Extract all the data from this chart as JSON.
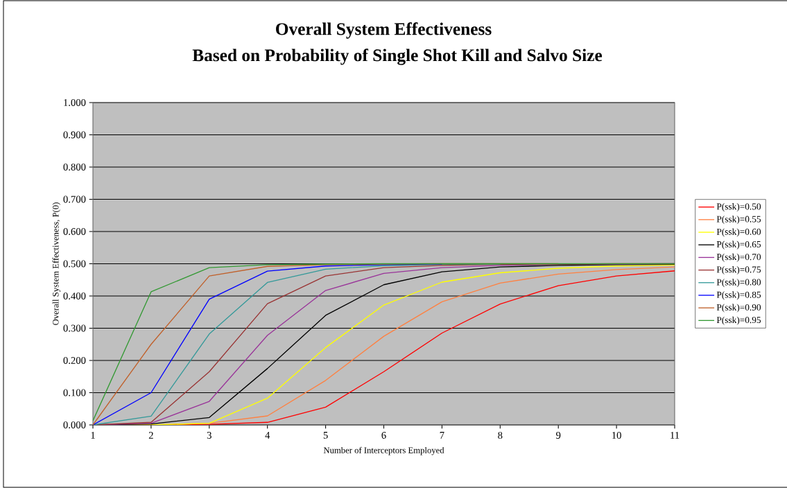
{
  "chart_data": {
    "type": "line",
    "title": "Overall System Effectiveness",
    "subtitle": "Based on Probability of Single Shot Kill and Salvo Size",
    "xlabel": "Number of Interceptors Employed",
    "ylabel": "Overall System Effectiveness, P(0)",
    "x": [
      1,
      2,
      3,
      4,
      5,
      6,
      7,
      8,
      9,
      10,
      11
    ],
    "xlim": [
      1,
      11
    ],
    "xticks": [
      1,
      2,
      3,
      4,
      5,
      6,
      7,
      8,
      9,
      10,
      11
    ],
    "ylim": [
      0,
      1
    ],
    "yticks": [
      {
        "value": 0,
        "label": "0.000"
      },
      {
        "value": 0.1,
        "label": "0.100"
      },
      {
        "value": 0.2,
        "label": "0.200"
      },
      {
        "value": 0.3,
        "label": "0.300"
      },
      {
        "value": 0.4,
        "label": "0.400"
      },
      {
        "value": 0.5,
        "label": "0.500"
      },
      {
        "value": 0.6,
        "label": "0.600"
      },
      {
        "value": 0.7,
        "label": "0.700"
      },
      {
        "value": 0.8,
        "label": "0.800"
      },
      {
        "value": 0.9,
        "label": "0.900"
      },
      {
        "value": 1,
        "label": "1.000"
      }
    ],
    "grid": "y",
    "legend": "right",
    "marker": "none",
    "line_style": "solid",
    "series": [
      {
        "name": "P(ssk)=0.50",
        "color": "#ff0000",
        "values": [
          0,
          0,
          0.002,
          0.008,
          0.055,
          0.165,
          0.285,
          0.375,
          0.432,
          0.462,
          0.478
        ]
      },
      {
        "name": "P(ssk)=0.55",
        "color": "#ff8040",
        "values": [
          0,
          0,
          0.005,
          0.028,
          0.138,
          0.275,
          0.382,
          0.44,
          0.468,
          0.482,
          0.49
        ]
      },
      {
        "name": "P(ssk)=0.60",
        "color": "#ffff00",
        "values": [
          0,
          0,
          0.005,
          0.083,
          0.24,
          0.372,
          0.443,
          0.472,
          0.486,
          0.493,
          0.496
        ]
      },
      {
        "name": "P(ssk)=0.65",
        "color": "#000000",
        "values": [
          0,
          0.003,
          0.023,
          0.175,
          0.34,
          0.435,
          0.475,
          0.49,
          0.495,
          0.497,
          0.498
        ]
      },
      {
        "name": "P(ssk)=0.70",
        "color": "#993399",
        "values": [
          0,
          0.005,
          0.073,
          0.278,
          0.417,
          0.47,
          0.488,
          0.495,
          0.498,
          0.499,
          0.5
        ]
      },
      {
        "name": "P(ssk)=0.75",
        "color": "#993333",
        "values": [
          0,
          0.008,
          0.165,
          0.376,
          0.462,
          0.488,
          0.495,
          0.498,
          0.499,
          0.5,
          0.5
        ]
      },
      {
        "name": "P(ssk)=0.80",
        "color": "#339999",
        "values": [
          0,
          0.027,
          0.282,
          0.442,
          0.483,
          0.494,
          0.498,
          0.499,
          null,
          null,
          null
        ]
      },
      {
        "name": "P(ssk)=0.85",
        "color": "#0000ff",
        "values": [
          0,
          0.1,
          0.39,
          0.477,
          0.493,
          0.497,
          0.499,
          null,
          null,
          null,
          null
        ]
      },
      {
        "name": "P(ssk)=0.90",
        "color": "#c0602a",
        "values": [
          0,
          0.25,
          0.462,
          0.492,
          0.497,
          0.499,
          0.5,
          0.5,
          0.5,
          null,
          null
        ]
      },
      {
        "name": "P(ssk)=0.95",
        "color": "#339933",
        "values": [
          0.013,
          0.413,
          0.488,
          0.497,
          0.499,
          0.5,
          0.5,
          0.5,
          0.5,
          0.5,
          0.5
        ]
      }
    ]
  }
}
